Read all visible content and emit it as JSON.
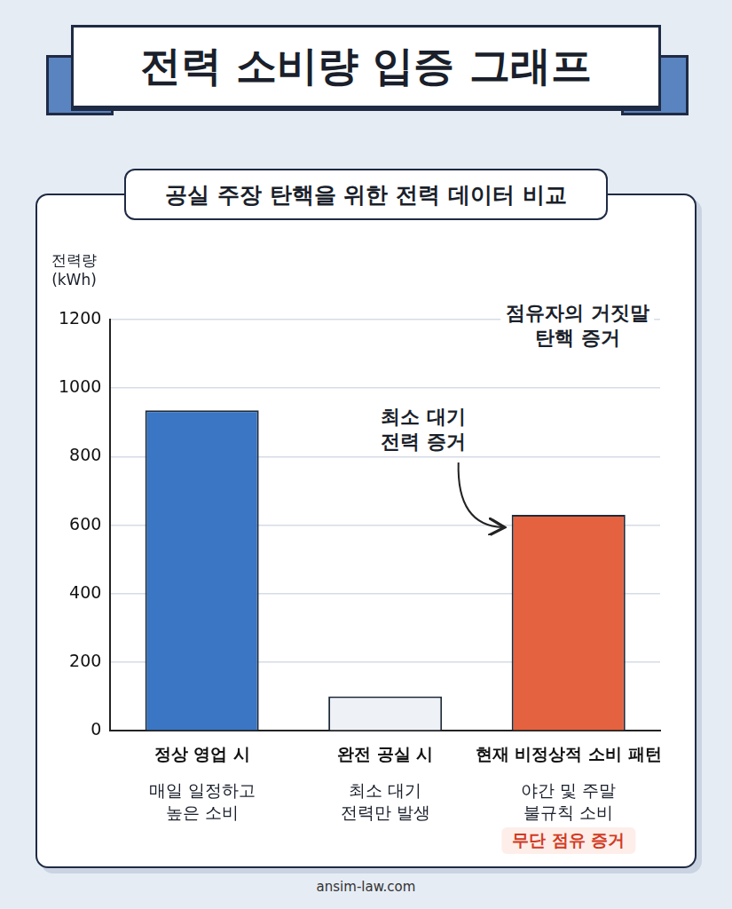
{
  "chart_data": {
    "type": "bar",
    "title": "전력 소비량 입증 그래프",
    "subtitle": "공실 주장 탄핵을 위한 전력 데이터 비교",
    "y_label": [
      "전력량",
      "(kWh)"
    ],
    "categories": [
      "정상 영업 시",
      "완전 공실 시",
      "현재 비정상적 소비 패턴"
    ],
    "values": [
      935,
      100,
      630
    ],
    "colors": [
      "#3a76c4",
      "#eef2f7",
      "#e4623f"
    ],
    "ylim": [
      0,
      1200
    ],
    "yticks": [
      0,
      200,
      400,
      600,
      800,
      1000,
      1200
    ],
    "grid": true,
    "category_notes": [
      [
        "매일 일정하고",
        "높은 소비"
      ],
      [
        "최소 대기",
        "전력만 발생"
      ],
      [
        "야간 및 주말",
        "불규칙 소비"
      ]
    ],
    "highlight_note": "무단 점유 증거",
    "annotations": [
      [
        "점유자의 거짓말",
        "탄핵 증거"
      ],
      [
        "최소 대기",
        "전력 증거"
      ]
    ],
    "source": "ansim-law.com"
  }
}
